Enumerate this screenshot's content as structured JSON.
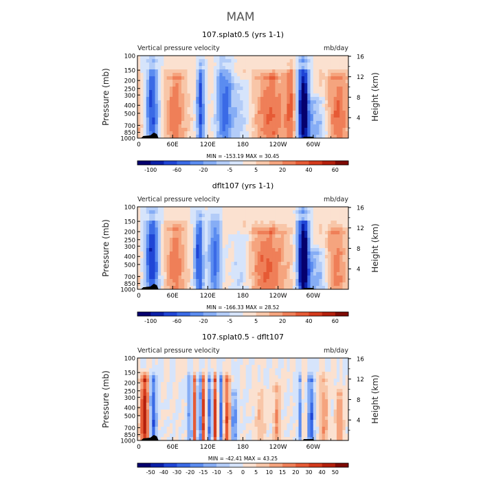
{
  "figure_title": "MAM",
  "colors": {
    "blues": [
      "#05006e",
      "#0a1fa8",
      "#1f45d6",
      "#3a6ae6",
      "#5b8cf0",
      "#86adf5",
      "#b3ccf8",
      "#d6e4fb"
    ],
    "reds": [
      "#fbe1d0",
      "#f8c6a8",
      "#f5a47e",
      "#ef7f58",
      "#e65a35",
      "#d33a1c",
      "#b41f0c",
      "#7e0a04"
    ],
    "topography": "#000000"
  },
  "chart_data": [
    {
      "type": "heatmap",
      "title": "107.splat0.5 (yrs 1-1)",
      "left_label": "Vertical pressure velocity",
      "right_label": "mb/day",
      "ylabel": "Pressure (mb)",
      "ylabel_right": "Height (km)",
      "pressure_ticks": [
        "100",
        "150",
        "200",
        "250",
        "300",
        "400",
        "500",
        "700",
        "850",
        "1000"
      ],
      "height_ticks": [
        "16",
        "12",
        "8",
        "4"
      ],
      "lon_ticks": [
        "0",
        "60E",
        "120E",
        "180",
        "120W",
        "60W"
      ],
      "stats": "MIN = -153.19   MAX =  30.45",
      "colorbar_labels": [
        "-100",
        "-60",
        "-20",
        "-5",
        "5",
        "20",
        "40",
        "60"
      ],
      "features": [
        {
          "lon": 25,
          "w": 8,
          "top": 120,
          "amp": -6
        },
        {
          "lon": 65,
          "w": 12,
          "top": 200,
          "amp": 3.2
        },
        {
          "lon": 108,
          "w": 5,
          "top": 130,
          "amp": -6
        },
        {
          "lon": 148,
          "w": 10,
          "top": 120,
          "amp": -5
        },
        {
          "lon": 175,
          "w": 14,
          "top": 250,
          "amp": -2
        },
        {
          "lon": 228,
          "w": 20,
          "top": 200,
          "amp": 3.5
        },
        {
          "lon": 262,
          "w": 6,
          "top": 130,
          "amp": 3
        },
        {
          "lon": 283,
          "w": 7,
          "top": 120,
          "amp": -9
        },
        {
          "lon": 305,
          "w": 14,
          "top": 400,
          "amp": -3
        },
        {
          "lon": 342,
          "w": 14,
          "top": 200,
          "amp": 3.5
        }
      ]
    },
    {
      "type": "heatmap",
      "title": "dflt107 (yrs 1-1)",
      "left_label": "Vertical pressure velocity",
      "right_label": "mb/day",
      "ylabel": "Pressure (mb)",
      "ylabel_right": "Height (km)",
      "pressure_ticks": [
        "100",
        "150",
        "200",
        "250",
        "300",
        "400",
        "500",
        "700",
        "850",
        "1000"
      ],
      "height_ticks": [
        "16",
        "12",
        "8",
        "4"
      ],
      "lon_ticks": [
        "0",
        "60E",
        "120E",
        "180",
        "120W",
        "60W"
      ],
      "stats": "MIN = -166.33   MAX =  28.52",
      "colorbar_labels": [
        "-100",
        "-60",
        "-20",
        "-5",
        "5",
        "20",
        "40",
        "60"
      ],
      "features": [
        {
          "lon": 25,
          "w": 9,
          "top": 120,
          "amp": -6.5
        },
        {
          "lon": 65,
          "w": 12,
          "top": 200,
          "amp": 3
        },
        {
          "lon": 105,
          "w": 6,
          "top": 130,
          "amp": -6
        },
        {
          "lon": 132,
          "w": 8,
          "top": 140,
          "amp": -5
        },
        {
          "lon": 178,
          "w": 12,
          "top": 250,
          "amp": -2
        },
        {
          "lon": 222,
          "w": 22,
          "top": 220,
          "amp": 3.6
        },
        {
          "lon": 283,
          "w": 7,
          "top": 120,
          "amp": -9.5
        },
        {
          "lon": 305,
          "w": 14,
          "top": 400,
          "amp": -3
        },
        {
          "lon": 340,
          "w": 12,
          "top": 220,
          "amp": 3
        }
      ]
    },
    {
      "type": "heatmap",
      "title": "107.splat0.5 - dflt107",
      "left_label": "Vertical pressure velocity",
      "right_label": "mb/day",
      "ylabel": "Pressure (mb)",
      "ylabel_right": "Height (km)",
      "pressure_ticks": [
        "100",
        "150",
        "200",
        "250",
        "300",
        "400",
        "500",
        "700",
        "850",
        "1000"
      ],
      "height_ticks": [
        "16",
        "12",
        "8",
        "4"
      ],
      "lon_ticks": [
        "0",
        "60E",
        "120E",
        "180",
        "120W",
        "60W"
      ],
      "stats": "MIN = -42.41   MAX =  43.25",
      "colorbar_labels": [
        "-50",
        "-40",
        "-30",
        "-20",
        "-15",
        "-10",
        "-5",
        "0",
        "5",
        "10",
        "15",
        "20",
        "30",
        "40",
        "50"
      ],
      "features": [
        {
          "lon": 12,
          "w": 5,
          "top": 200,
          "amp": 7
        },
        {
          "lon": 27,
          "w": 4,
          "top": 200,
          "amp": -5
        },
        {
          "lon": 90,
          "w": 3,
          "top": 200,
          "amp": -4
        },
        {
          "lon": 98,
          "w": 3,
          "top": 200,
          "amp": 5
        },
        {
          "lon": 106,
          "w": 3,
          "top": 200,
          "amp": -6
        },
        {
          "lon": 112,
          "w": 3,
          "top": 200,
          "amp": 6
        },
        {
          "lon": 124,
          "w": 3,
          "top": 200,
          "amp": -5
        },
        {
          "lon": 133,
          "w": 3,
          "top": 200,
          "amp": 6
        },
        {
          "lon": 142,
          "w": 3,
          "top": 200,
          "amp": -5
        },
        {
          "lon": 153,
          "w": 4,
          "top": 200,
          "amp": 5
        },
        {
          "lon": 165,
          "w": 4,
          "top": 300,
          "amp": -4
        },
        {
          "lon": 210,
          "w": 6,
          "top": 300,
          "amp": 2
        },
        {
          "lon": 238,
          "w": 4,
          "top": 250,
          "amp": 3
        },
        {
          "lon": 280,
          "w": 3,
          "top": 200,
          "amp": -5
        },
        {
          "lon": 284,
          "w": 2,
          "top": 200,
          "amp": 5
        },
        {
          "lon": 296,
          "w": 4,
          "top": 200,
          "amp": -5
        },
        {
          "lon": 318,
          "w": 5,
          "top": 200,
          "amp": 3
        },
        {
          "lon": 345,
          "w": 5,
          "top": 300,
          "amp": 3
        }
      ]
    }
  ]
}
